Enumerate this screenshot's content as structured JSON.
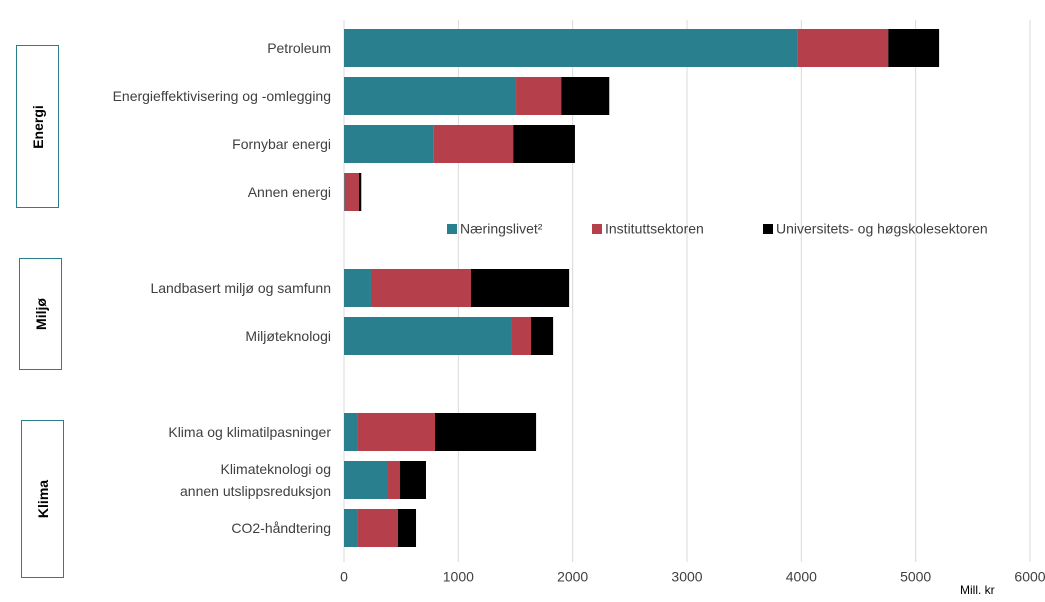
{
  "chart_data": {
    "type": "stacked_barh",
    "categories": [
      "Petroleum",
      "Energieffektivisering og -omlegging",
      "Fornybar energi",
      "Annen energi",
      null,
      "Landbasert miljø og samfunn",
      "Miljøteknologi",
      null,
      "Klima og klimatilpasninger",
      "Klimateknologi og\nannen utslippsreduksjon",
      "CO2-håndtering"
    ],
    "series": [
      {
        "name": "Næringslivet²",
        "color": "#2a7f8f",
        "values": [
          3970,
          1505,
          780,
          5,
          null,
          236,
          1461,
          null,
          122,
          385,
          122
        ]
      },
      {
        "name": "Instituttsektoren",
        "color": "#b5404b",
        "values": [
          790,
          395,
          700,
          126,
          null,
          875,
          175,
          null,
          674,
          105,
          350
        ]
      },
      {
        "name": "Universitets- og høgskolesektoren",
        "color": "#000000",
        "values": [
          445,
          420,
          540,
          20,
          null,
          858,
          193,
          null,
          884,
          227,
          158
        ]
      }
    ],
    "group_labels": [
      "Energi",
      "Miljø",
      "Klima"
    ],
    "xlabel": "Mill. kr",
    "xlim": [
      0,
      6000
    ],
    "xticks": [
      0,
      1000,
      2000,
      3000,
      4000,
      5000,
      6000
    ],
    "grid": true
  }
}
